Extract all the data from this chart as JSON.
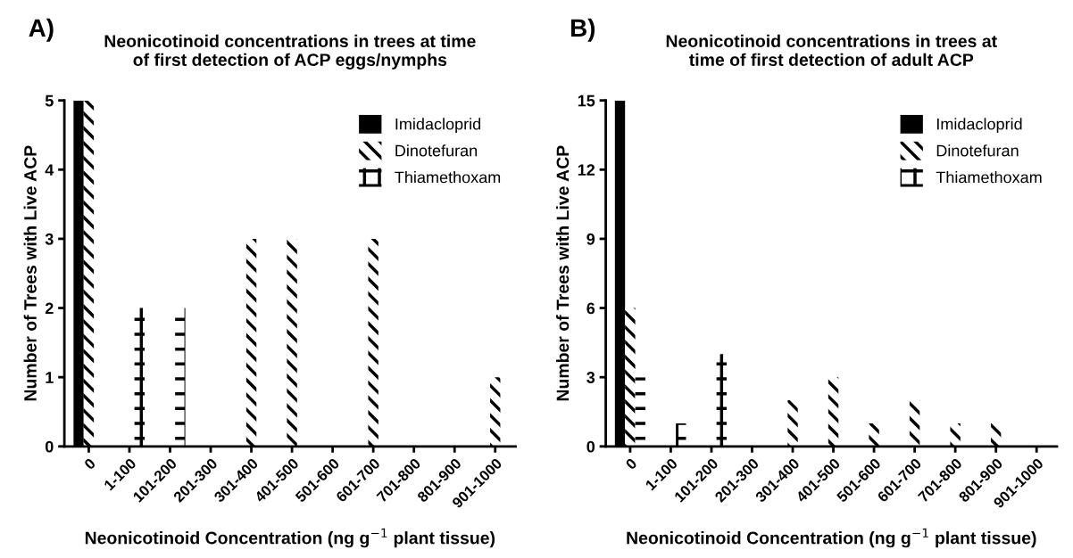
{
  "chart_data": [
    {
      "type": "bar",
      "title": "Neonicotinoid concentrations in trees at time\nof first detection of ACP eggs/nymphs",
      "xlabel": "Neonicotinoid Concentration (ng g$^{−1}$ plant tissue)",
      "ylabel": "Number of Trees with Live ACP",
      "annotations": [
        "A)"
      ],
      "categories": [
        "0",
        "1-100",
        "101-200",
        "201-300",
        "301-400",
        "401-500",
        "501-600",
        "601-700",
        "701-800",
        "801-900",
        "901-1000"
      ],
      "series": [
        {
          "name": "Imidacloprid",
          "color": "#000000",
          "values": [
            5,
            0,
            0,
            0,
            0,
            0,
            0,
            0,
            0,
            0,
            0
          ]
        },
        {
          "name": "Dinotefuran",
          "color": "#000000",
          "values": [
            5,
            0,
            0,
            0,
            3,
            3,
            0,
            3,
            0,
            0,
            1
          ]
        },
        {
          "name": "Thiamethoxam",
          "color": "#000000",
          "values": [
            0,
            2,
            2,
            0,
            0,
            0,
            0,
            0,
            0,
            0,
            0
          ]
        }
      ],
      "ylim": [
        0,
        5
      ],
      "yticks": [
        0,
        1,
        2,
        3,
        4,
        5
      ],
      "grid": false,
      "legend": "top right"
    },
    {
      "type": "bar",
      "title": "Neonicotinoid concentrations in trees at\ntime of first detection of adult ACP",
      "xlabel": "Neonicotinoid Concentration (ng g$^{−1}$ plant tissue)",
      "ylabel": "Number of Trees with Live ACP",
      "annotations": [
        "B)"
      ],
      "categories": [
        "0",
        "1-100",
        "101-200",
        "201-300",
        "301-400",
        "401-500",
        "501-600",
        "601-700",
        "701-800",
        "801-900",
        "901-1000"
      ],
      "series": [
        {
          "name": "Imidacloprid",
          "color": "#000000",
          "values": [
            15,
            0,
            0,
            0,
            0,
            0,
            0,
            0,
            0,
            0,
            0
          ]
        },
        {
          "name": "Dinotefuran",
          "color": "#000000",
          "values": [
            6,
            0,
            0,
            0,
            2,
            3,
            1,
            2,
            1,
            1,
            0
          ]
        },
        {
          "name": "Thiamethoxam",
          "color": "#000000",
          "values": [
            3,
            1,
            4,
            0,
            0,
            0,
            0,
            0,
            0,
            0,
            0
          ]
        }
      ],
      "ylim": [
        0,
        15
      ],
      "yticks": [
        0,
        3,
        6,
        9,
        12,
        15
      ],
      "grid": false,
      "legend": "top right"
    }
  ]
}
